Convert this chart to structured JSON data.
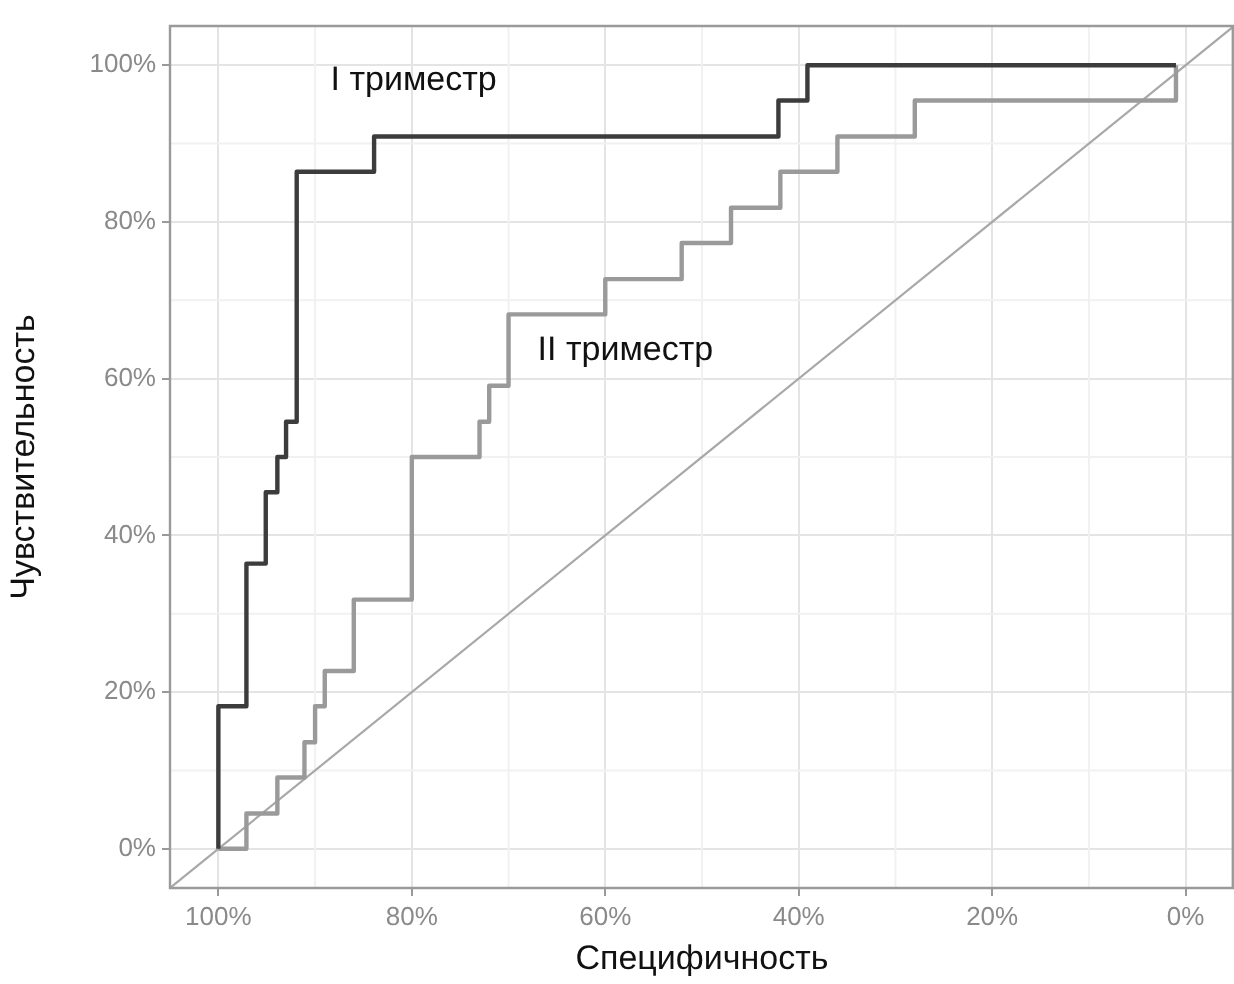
{
  "chart_data": {
    "type": "line",
    "xlabel": "Специфичность",
    "ylabel": "Чувствительность",
    "xlim": [
      105,
      -5
    ],
    "ylim": [
      -5,
      105
    ],
    "xticks": [
      {
        "value": 100,
        "label": "100%"
      },
      {
        "value": 80,
        "label": "80%"
      },
      {
        "value": 60,
        "label": "60%"
      },
      {
        "value": 40,
        "label": "40%"
      },
      {
        "value": 20,
        "label": "20%"
      },
      {
        "value": 0,
        "label": "0%"
      }
    ],
    "yticks": [
      {
        "value": 0,
        "label": "0%"
      },
      {
        "value": 20,
        "label": "20%"
      },
      {
        "value": 40,
        "label": "40%"
      },
      {
        "value": 60,
        "label": "60%"
      },
      {
        "value": 80,
        "label": "80%"
      },
      {
        "value": 100,
        "label": "100%"
      }
    ],
    "grid": true,
    "legend": false,
    "marker": "none",
    "line_style": "solid",
    "series": [
      {
        "name": "I триместр",
        "color": "#3c3c3c",
        "x": [
          100,
          100,
          97.1,
          97.1,
          95.1,
          95.1,
          93.9,
          93.9,
          93,
          93,
          91.9,
          91.9,
          83.9,
          83.9,
          42.1,
          42.1,
          39.1,
          39.1,
          1
        ],
        "values": [
          0,
          18.2,
          18.2,
          36.4,
          36.4,
          45.5,
          45.5,
          50,
          50,
          54.5,
          54.5,
          86.4,
          86.4,
          90.9,
          90.9,
          95.5,
          95.5,
          100,
          100
        ]
      },
      {
        "name": "II триместр",
        "color": "#9a9a9a",
        "x": [
          100,
          97.1,
          97.1,
          93.9,
          93.9,
          91.1,
          91.1,
          90,
          90,
          89,
          89,
          86,
          86,
          80,
          80,
          73,
          73,
          72,
          72,
          70,
          70,
          60,
          60,
          52.1,
          52.1,
          47,
          47,
          41.9,
          41.9,
          36,
          36,
          28,
          28,
          1,
          1
        ],
        "values": [
          0,
          0,
          4.5,
          4.5,
          9.1,
          9.1,
          13.6,
          13.6,
          18.2,
          18.2,
          22.7,
          22.7,
          31.8,
          31.8,
          50,
          50,
          54.5,
          54.5,
          59.1,
          59.1,
          68.2,
          68.2,
          72.7,
          72.7,
          77.3,
          77.3,
          81.8,
          81.8,
          86.4,
          86.4,
          90.9,
          90.9,
          95.5,
          95.5,
          100
        ]
      },
      {
        "color": "#a8a8a8",
        "x": [
          105,
          -5
        ],
        "values": [
          -5,
          105
        ]
      }
    ]
  }
}
